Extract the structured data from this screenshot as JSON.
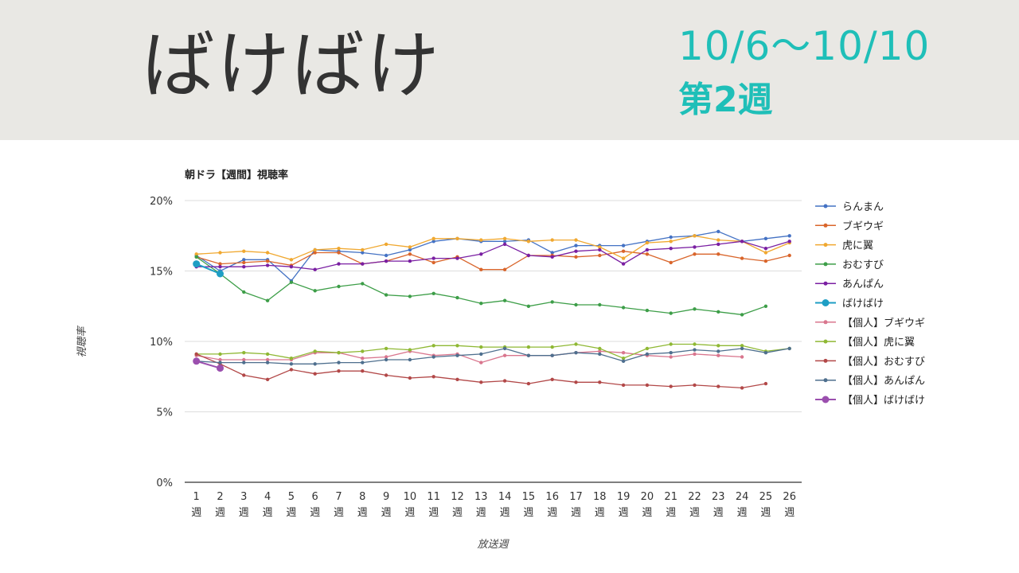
{
  "header": {
    "title": "ばけばけ",
    "date_range": "10/6～10/10",
    "week": "第2週"
  },
  "chart_data": {
    "type": "line",
    "title": "朝ドラ【週間】視聴率",
    "xlabel": "放送週",
    "ylabel": "視聴率",
    "ylim": [
      0,
      20
    ],
    "y_ticks": [
      "0%",
      "5%",
      "10%",
      "15%",
      "20%"
    ],
    "grid": true,
    "legend_position": "right",
    "categories": [
      "1週",
      "2週",
      "3週",
      "4週",
      "5週",
      "6週",
      "7週",
      "8週",
      "9週",
      "10週",
      "11週",
      "12週",
      "13週",
      "14週",
      "15週",
      "16週",
      "17週",
      "18週",
      "19週",
      "20週",
      "21週",
      "22週",
      "23週",
      "24週",
      "25週",
      "26週"
    ],
    "series": [
      {
        "name": "らんまん",
        "color": "#4472c4",
        "highlight": false,
        "values": [
          16.1,
          15.0,
          15.8,
          15.8,
          14.3,
          16.5,
          16.4,
          16.3,
          16.1,
          16.5,
          17.1,
          17.3,
          17.1,
          17.1,
          17.2,
          16.3,
          16.8,
          16.8,
          16.8,
          17.1,
          17.4,
          17.5,
          17.8,
          17.1,
          17.3,
          17.5
        ]
      },
      {
        "name": "ブギウギ",
        "color": "#d9652b",
        "highlight": false,
        "values": [
          16.0,
          15.5,
          15.6,
          15.7,
          15.4,
          16.3,
          16.3,
          15.5,
          15.7,
          16.2,
          15.6,
          16.0,
          15.1,
          15.1,
          16.1,
          16.1,
          16.0,
          16.1,
          16.4,
          16.2,
          15.6,
          16.2,
          16.2,
          15.9,
          15.7,
          16.1
        ]
      },
      {
        "name": "虎に翼",
        "color": "#f0a830",
        "highlight": false,
        "values": [
          16.2,
          16.3,
          16.4,
          16.3,
          15.8,
          16.5,
          16.6,
          16.5,
          16.9,
          16.7,
          17.3,
          17.3,
          17.2,
          17.3,
          17.1,
          17.2,
          17.2,
          16.7,
          15.9,
          17.0,
          17.1,
          17.5,
          17.2,
          17.1,
          16.3,
          17.0
        ]
      },
      {
        "name": "おむすび",
        "color": "#3d9e48",
        "highlight": false,
        "values": [
          16.0,
          14.8,
          13.5,
          12.9,
          14.2,
          13.6,
          13.9,
          14.1,
          13.3,
          13.2,
          13.4,
          13.1,
          12.7,
          12.9,
          12.5,
          12.8,
          12.6,
          12.6,
          12.4,
          12.2,
          12.0,
          12.3,
          12.1,
          11.9,
          12.5,
          null
        ]
      },
      {
        "name": "あんぱん",
        "color": "#7a1fa2",
        "highlight": false,
        "values": [
          15.3,
          15.3,
          15.3,
          15.4,
          15.3,
          15.1,
          15.5,
          15.5,
          15.7,
          15.7,
          15.9,
          15.9,
          16.2,
          16.9,
          16.1,
          16.0,
          16.4,
          16.5,
          15.5,
          16.5,
          16.6,
          16.7,
          16.9,
          17.1,
          16.6,
          17.1
        ]
      },
      {
        "name": "ばけばけ",
        "color": "#1e9ec4",
        "highlight": true,
        "values": [
          15.5,
          14.8,
          null,
          null,
          null,
          null,
          null,
          null,
          null,
          null,
          null,
          null,
          null,
          null,
          null,
          null,
          null,
          null,
          null,
          null,
          null,
          null,
          null,
          null,
          null,
          null
        ]
      },
      {
        "name": "【個人】ブギウギ",
        "color": "#d9768e",
        "highlight": false,
        "values": [
          9.0,
          8.7,
          8.7,
          8.7,
          8.7,
          9.2,
          9.2,
          8.8,
          8.9,
          9.3,
          9.0,
          9.1,
          8.5,
          9.0,
          9.0,
          9.0,
          9.2,
          9.3,
          9.2,
          9.0,
          8.9,
          9.1,
          9.0,
          8.9,
          null,
          null
        ]
      },
      {
        "name": "【個人】虎に翼",
        "color": "#8fb834",
        "highlight": false,
        "values": [
          9.1,
          9.1,
          9.2,
          9.1,
          8.8,
          9.3,
          9.2,
          9.3,
          9.5,
          9.4,
          9.7,
          9.7,
          9.6,
          9.6,
          9.6,
          9.6,
          9.8,
          9.5,
          8.8,
          9.5,
          9.8,
          9.8,
          9.7,
          9.7,
          9.3,
          9.5
        ]
      },
      {
        "name": "【個人】おむすび",
        "color": "#b24848",
        "highlight": false,
        "values": [
          9.1,
          8.4,
          7.6,
          7.3,
          8.0,
          7.7,
          7.9,
          7.9,
          7.6,
          7.4,
          7.5,
          7.3,
          7.1,
          7.2,
          7.0,
          7.3,
          7.1,
          7.1,
          6.9,
          6.9,
          6.8,
          6.9,
          6.8,
          6.7,
          7.0,
          null
        ]
      },
      {
        "name": "【個人】あんぱん",
        "color": "#4e6f8e",
        "highlight": false,
        "values": [
          8.6,
          8.5,
          8.5,
          8.5,
          8.4,
          8.4,
          8.5,
          8.5,
          8.7,
          8.7,
          8.9,
          9.0,
          9.1,
          9.5,
          9.0,
          9.0,
          9.2,
          9.1,
          8.6,
          9.1,
          9.2,
          9.4,
          9.3,
          9.5,
          9.2,
          9.5
        ]
      },
      {
        "name": "【個人】ばけばけ",
        "color": "#9b4fae",
        "highlight": true,
        "values": [
          8.6,
          8.1,
          null,
          null,
          null,
          null,
          null,
          null,
          null,
          null,
          null,
          null,
          null,
          null,
          null,
          null,
          null,
          null,
          null,
          null,
          null,
          null,
          null,
          null,
          null,
          null
        ]
      }
    ]
  }
}
